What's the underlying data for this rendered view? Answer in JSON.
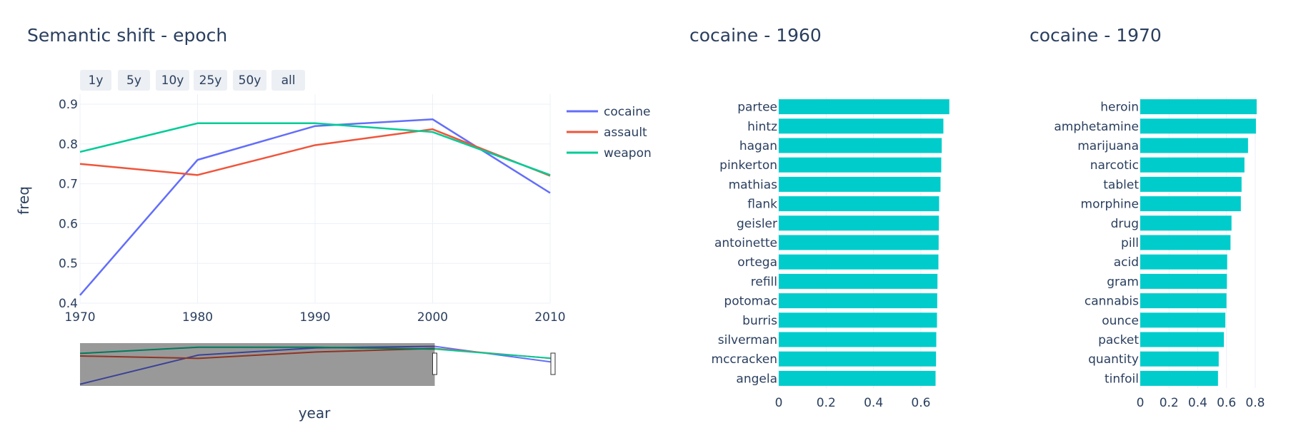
{
  "chart_data": [
    {
      "type": "line",
      "title": "Semantic shift - epoch",
      "xlabel": "year",
      "ylabel": "freq",
      "xlim": [
        1970,
        2010
      ],
      "ylim": [
        0.4,
        0.9
      ],
      "x_ticks": [
        1970,
        1980,
        1990,
        2000,
        2010
      ],
      "y_ticks": [
        0.4,
        0.5,
        0.6,
        0.7,
        0.8,
        0.9
      ],
      "grid": true,
      "legend_position": "right",
      "range_selector_buttons": [
        "1y",
        "5y",
        "10y",
        "25y",
        "50y",
        "all"
      ],
      "range_slider": true,
      "range_slider_window": [
        1970,
        2000
      ],
      "x": [
        1970,
        1980,
        1990,
        2000,
        2010
      ],
      "series": [
        {
          "name": "cocaine",
          "color": "#636efa",
          "values": [
            0.42,
            0.76,
            0.845,
            0.862,
            0.677
          ]
        },
        {
          "name": "assault",
          "color": "#ef553b",
          "values": [
            0.75,
            0.722,
            0.797,
            0.837,
            0.72
          ]
        },
        {
          "name": "weapon",
          "color": "#00cc96",
          "values": [
            0.78,
            0.852,
            0.852,
            0.83,
            0.722
          ]
        }
      ]
    },
    {
      "type": "bar",
      "orientation": "horizontal",
      "title": "cocaine - 1960",
      "color": "#00cccc",
      "xlim": [
        0,
        0.76
      ],
      "x_ticks": [
        0,
        0.2,
        0.4,
        0.6
      ],
      "categories": [
        "partee",
        "hintz",
        "hagan",
        "pinkerton",
        "mathias",
        "flank",
        "geisler",
        "antoinette",
        "ortega",
        "refill",
        "potomac",
        "burris",
        "silverman",
        "mccracken",
        "angela"
      ],
      "values": [
        0.72,
        0.695,
        0.688,
        0.686,
        0.683,
        0.677,
        0.676,
        0.675,
        0.674,
        0.67,
        0.669,
        0.668,
        0.665,
        0.664,
        0.662
      ]
    },
    {
      "type": "bar",
      "orientation": "horizontal",
      "title": "cocaine - 1970",
      "color": "#00cccc",
      "xlim": [
        0,
        0.87
      ],
      "x_ticks": [
        0,
        0.2,
        0.4,
        0.6,
        0.8
      ],
      "categories": [
        "heroin",
        "amphetamine",
        "marijuana",
        "narcotic",
        "tablet",
        "morphine",
        "drug",
        "pill",
        "acid",
        "gram",
        "cannabis",
        "ounce",
        "packet",
        "quantity",
        "tinfoil"
      ],
      "values": [
        0.81,
        0.805,
        0.75,
        0.725,
        0.705,
        0.7,
        0.635,
        0.628,
        0.605,
        0.603,
        0.6,
        0.592,
        0.582,
        0.546,
        0.541
      ]
    }
  ]
}
